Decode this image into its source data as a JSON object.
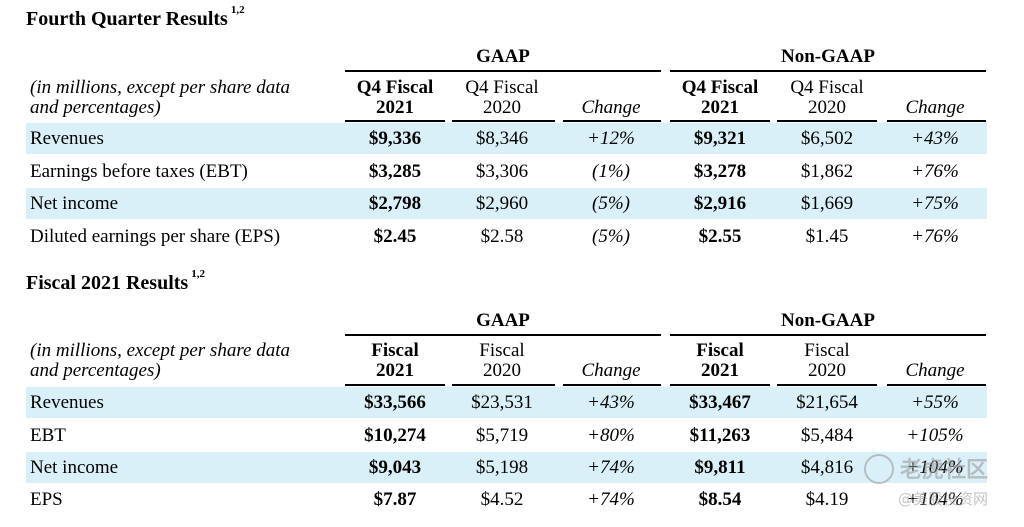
{
  "colors": {
    "band": "#daf0f8",
    "text": "#000000"
  },
  "group_headers": {
    "gaap": "GAAP",
    "nongaap": "Non-GAAP"
  },
  "change_label": "Change",
  "description": {
    "line1": "(in millions, except per share data",
    "line2": "and percentages)"
  },
  "q4": {
    "title": "Fourth Quarter Results",
    "superscript": "1,2",
    "columns": {
      "cur_line1": "Q4 Fiscal",
      "cur_line2": "2021",
      "prev_line1": "Q4 Fiscal",
      "prev_line2": "2020"
    },
    "rows": [
      {
        "label": "Revenues",
        "gaap_cur": "$9,336",
        "gaap_prev": "$8,346",
        "gaap_change": "+12%",
        "ng_cur": "$9,321",
        "ng_prev": "$6,502",
        "ng_change": "+43%"
      },
      {
        "label": "Earnings before taxes (EBT)",
        "gaap_cur": "$3,285",
        "gaap_prev": "$3,306",
        "gaap_change": "(1%)",
        "ng_cur": "$3,278",
        "ng_prev": "$1,862",
        "ng_change": "+76%"
      },
      {
        "label": "Net income",
        "gaap_cur": "$2,798",
        "gaap_prev": "$2,960",
        "gaap_change": "(5%)",
        "ng_cur": "$2,916",
        "ng_prev": "$1,669",
        "ng_change": "+75%"
      },
      {
        "label": "Diluted earnings per share (EPS)",
        "gaap_cur": "$2.45",
        "gaap_prev": "$2.58",
        "gaap_change": "(5%)",
        "ng_cur": "$2.55",
        "ng_prev": "$1.45",
        "ng_change": "+76%"
      }
    ]
  },
  "fy": {
    "title": "Fiscal 2021 Results",
    "superscript": "1,2",
    "columns": {
      "cur_line1": "Fiscal",
      "cur_line2": "2021",
      "prev_line1": "Fiscal",
      "prev_line2": "2020"
    },
    "rows": [
      {
        "label": "Revenues",
        "gaap_cur": "$33,566",
        "gaap_prev": "$23,531",
        "gaap_change": "+43%",
        "ng_cur": "$33,467",
        "ng_prev": "$21,654",
        "ng_change": "+55%"
      },
      {
        "label": "EBT",
        "gaap_cur": "$10,274",
        "gaap_prev": "$5,719",
        "gaap_change": "+80%",
        "ng_cur": "$11,263",
        "ng_prev": "$5,484",
        "ng_change": "+105%"
      },
      {
        "label": "Net income",
        "gaap_cur": "$9,043",
        "gaap_prev": "$5,198",
        "gaap_change": "+74%",
        "ng_cur": "$9,811",
        "ng_prev": "$4,816",
        "ng_change": "+104%"
      },
      {
        "label": "EPS",
        "gaap_cur": "$7.87",
        "gaap_prev": "$4.52",
        "gaap_change": "+74%",
        "ng_cur": "$8.54",
        "ng_prev": "$4.19",
        "ng_change": "+104%"
      }
    ]
  },
  "watermark": {
    "main": "老虎社区",
    "sub": "@美股投资网"
  }
}
